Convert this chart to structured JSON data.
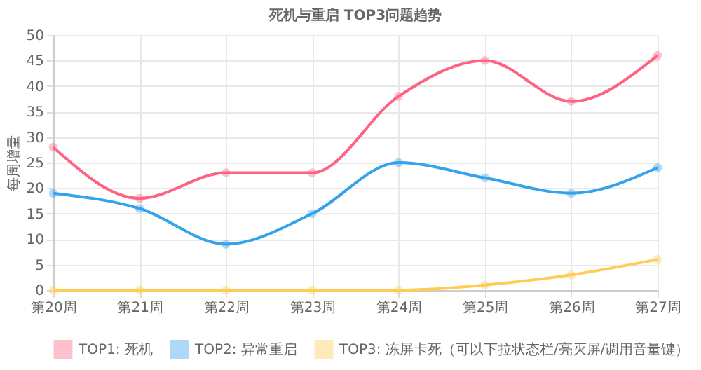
{
  "chart_data": {
    "type": "line",
    "title": "死机与重启 TOP3问题趋势",
    "ylabel": "每周增量",
    "categories": [
      "第20周",
      "第21周",
      "第22周",
      "第23周",
      "第24周",
      "第25周",
      "第26周",
      "第27周"
    ],
    "series": [
      {
        "name": "TOP1: 死机",
        "color": "#ff6384",
        "values": [
          28,
          18,
          23,
          23,
          38,
          45,
          37,
          46
        ]
      },
      {
        "name": "TOP2: 异常重启",
        "color": "#36a2eb",
        "values": [
          19,
          16,
          9,
          15,
          25,
          22,
          19,
          24
        ]
      },
      {
        "name": "TOP3: 冻屏卡死（可以下拉状态栏/亮灭屏/调用音量键）",
        "color": "#ffcd56",
        "values": [
          0,
          0,
          0,
          0,
          0,
          1,
          3,
          6
        ]
      }
    ],
    "ylim": [
      0,
      50
    ],
    "yticks": [
      0,
      5,
      10,
      15,
      20,
      25,
      30,
      35,
      40,
      45,
      50
    ],
    "grid": true,
    "legend": "bottom",
    "marker": "circle",
    "line_style": "solid"
  }
}
